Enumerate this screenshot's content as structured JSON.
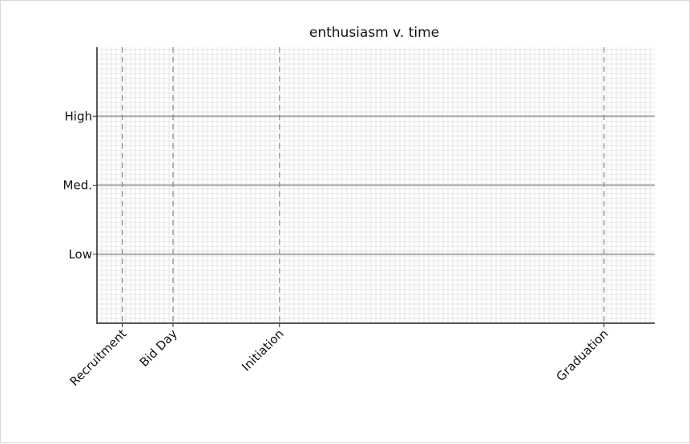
{
  "chart_data": {
    "type": "line",
    "title": "enthusiasm v. time",
    "xlabel": "",
    "ylabel": "",
    "y_levels": [
      {
        "label": "Low",
        "value": 1
      },
      {
        "label": "Med.",
        "value": 2
      },
      {
        "label": "High",
        "value": 3
      }
    ],
    "ylim": [
      0,
      4
    ],
    "x_events": [
      {
        "label": "Recruitment",
        "value": 0.5
      },
      {
        "label": "Bid  Day",
        "value": 1.5
      },
      {
        "label": "Initiation",
        "value": 3.6
      },
      {
        "label": "Graduation",
        "value": 10
      }
    ],
    "xlim": [
      0,
      11
    ],
    "series": [],
    "grid": true,
    "legend": "none",
    "colors": {
      "grid_minor": "#e4e4e4",
      "level_line": "#a8a8a8",
      "event_line": "#8c8c8c",
      "axis": "#222222"
    }
  }
}
